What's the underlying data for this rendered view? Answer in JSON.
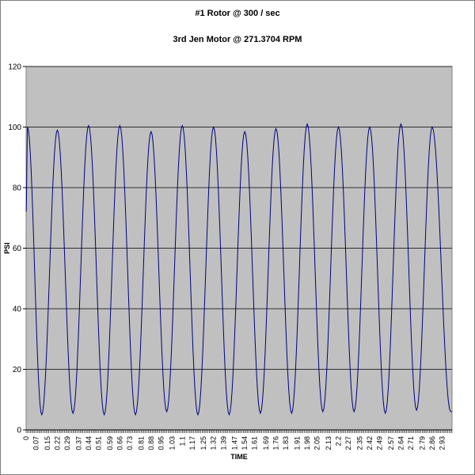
{
  "chart_data": {
    "type": "line",
    "title": "#1 Rotor @ 300 / sec",
    "subtitle": "3rd Jen Motor @ 271.3704 RPM",
    "xlabel": "TIME",
    "ylabel": "PSI",
    "ylim": [
      0,
      120
    ],
    "yticks": [
      0,
      20,
      40,
      60,
      80,
      100,
      120
    ],
    "xlim": [
      0,
      3.0
    ],
    "xticks": [
      "0",
      "0.07",
      "0.15",
      "0.22",
      "0.29",
      "0.37",
      "0.44",
      "0.51",
      "0.59",
      "0.66",
      "0.73",
      "0.81",
      "0.88",
      "0.95",
      "1.03",
      "1.1",
      "1.17",
      "1.25",
      "1.32",
      "1.39",
      "1.47",
      "1.54",
      "1.61",
      "1.69",
      "1.76",
      "1.83",
      "1.91",
      "1.98",
      "2.05",
      "2.13",
      "2.2",
      "2.27",
      "2.35",
      "2.42",
      "2.49",
      "2.57",
      "2.64",
      "2.71",
      "2.79",
      "2.86",
      "2.93"
    ],
    "grid": "horizontal",
    "legend": "none",
    "plot_background": "#c0c0c0",
    "line_color": "#000080",
    "start_value": 72,
    "end_value": 6,
    "peaks": [
      {
        "x": 0.01,
        "y": 100
      },
      {
        "x": 0.22,
        "y": 99
      },
      {
        "x": 0.44,
        "y": 100.5
      },
      {
        "x": 0.66,
        "y": 100.5
      },
      {
        "x": 0.88,
        "y": 98.5
      },
      {
        "x": 1.1,
        "y": 100.5
      },
      {
        "x": 1.32,
        "y": 100
      },
      {
        "x": 1.54,
        "y": 98.5
      },
      {
        "x": 1.76,
        "y": 99.5
      },
      {
        "x": 1.98,
        "y": 101
      },
      {
        "x": 2.2,
        "y": 100
      },
      {
        "x": 2.42,
        "y": 100
      },
      {
        "x": 2.64,
        "y": 101
      },
      {
        "x": 2.86,
        "y": 100
      }
    ],
    "troughs": [
      {
        "x": 0.11,
        "y": 5
      },
      {
        "x": 0.33,
        "y": 5.5
      },
      {
        "x": 0.55,
        "y": 5
      },
      {
        "x": 0.77,
        "y": 5
      },
      {
        "x": 0.99,
        "y": 6
      },
      {
        "x": 1.21,
        "y": 5
      },
      {
        "x": 1.43,
        "y": 5
      },
      {
        "x": 1.65,
        "y": 5.5
      },
      {
        "x": 1.87,
        "y": 5.5
      },
      {
        "x": 2.09,
        "y": 6
      },
      {
        "x": 2.31,
        "y": 6
      },
      {
        "x": 2.53,
        "y": 5.5
      },
      {
        "x": 2.75,
        "y": 6.5
      },
      {
        "x": 2.99,
        "y": 6
      }
    ]
  }
}
